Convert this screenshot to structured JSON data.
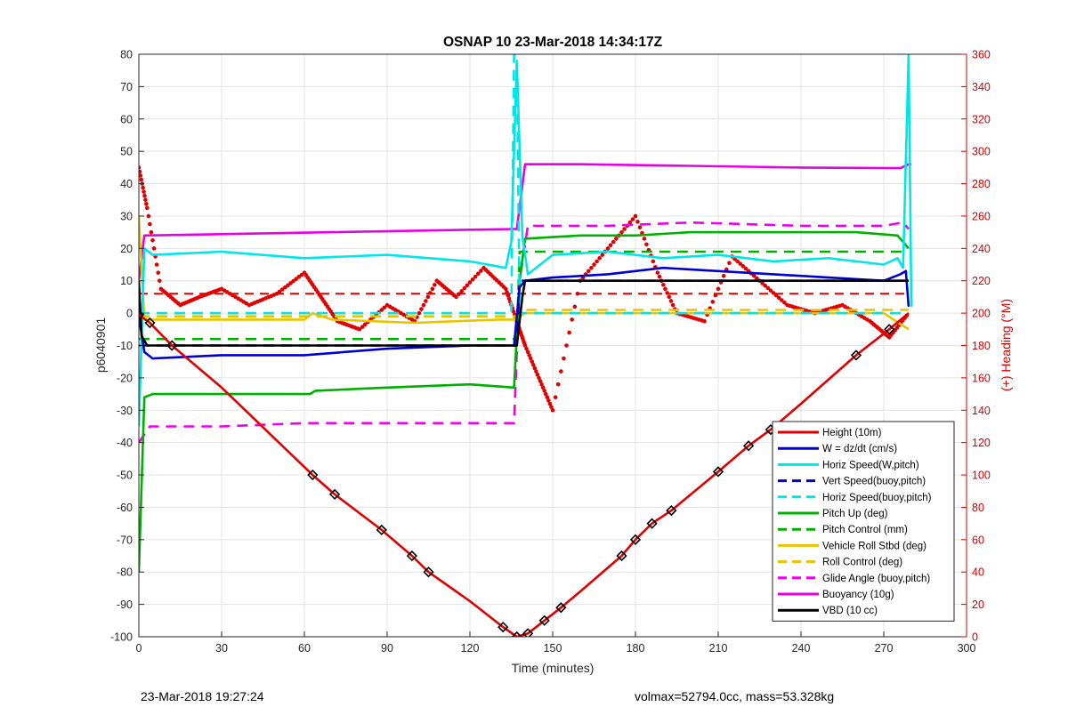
{
  "footer": {
    "left": "23-Mar-2018 19:27:24",
    "right": "volmax=52794.0cc, mass=53.328kg"
  },
  "chart_data": {
    "type": "line",
    "title": "OSNAP 10 23-Mar-2018 14:34:17Z",
    "xlabel": "Time (minutes)",
    "ylabel": "p6040901",
    "y2label": "(+) Heading (°M)",
    "xlim": [
      0,
      300
    ],
    "ylim": [
      -100,
      80
    ],
    "y2lim": [
      0,
      360
    ],
    "xticks": [
      0,
      30,
      60,
      90,
      120,
      150,
      180,
      210,
      240,
      270,
      300
    ],
    "yticks": [
      -100,
      -90,
      -80,
      -70,
      -60,
      -50,
      -40,
      -30,
      -20,
      -10,
      0,
      10,
      20,
      30,
      40,
      50,
      60,
      70,
      80
    ],
    "y2ticks": [
      0,
      20,
      40,
      60,
      80,
      100,
      120,
      140,
      160,
      180,
      200,
      220,
      240,
      260,
      280,
      300,
      320,
      340,
      360
    ],
    "grid": true,
    "legend_position": "bottom-right",
    "series": [
      {
        "name": "Height (10m)",
        "color": "#e00000",
        "style": "solid",
        "x": [
          0,
          4,
          12,
          30,
          63,
          71,
          88,
          99,
          105,
          120,
          132,
          137,
          141,
          147,
          153,
          160,
          175,
          180,
          186,
          193,
          210,
          221,
          229,
          240,
          260,
          272,
          279
        ],
        "y": [
          -0.5,
          -3,
          -10,
          -23,
          -50,
          -56,
          -67,
          -75,
          -80,
          -89,
          -97,
          -100,
          -99,
          -95,
          -91,
          -86,
          -75,
          -70,
          -65,
          -61,
          -49,
          -41,
          -36,
          -28,
          -13,
          -5,
          0
        ]
      },
      {
        "name": "W = dz/dt (cm/s)",
        "color": "#0000cc",
        "style": "solid",
        "x": [
          0,
          2,
          5,
          30,
          60,
          90,
          120,
          136,
          138,
          140,
          150,
          170,
          190,
          210,
          230,
          250,
          270,
          276,
          278,
          279
        ],
        "y": [
          -1,
          -12,
          -14,
          -13,
          -13,
          -11,
          -10,
          -10,
          8,
          10,
          11,
          12,
          14,
          13,
          12,
          11,
          10,
          12,
          13,
          2
        ]
      },
      {
        "name": "Horiz Speed(W,pitch)",
        "color": "#00e5e5",
        "style": "solid",
        "x": [
          0,
          2,
          5,
          30,
          60,
          90,
          120,
          133,
          135,
          137,
          139,
          141,
          150,
          170,
          190,
          210,
          230,
          250,
          270,
          275,
          277,
          279,
          280
        ],
        "y": [
          -35,
          20,
          18,
          19,
          17,
          18,
          16,
          14,
          22,
          78,
          24,
          12,
          18,
          19,
          17,
          18,
          16,
          17,
          15,
          17,
          14,
          80,
          2
        ]
      },
      {
        "name": "Vert Speed(buoy,pitch)",
        "color": "#0000cc",
        "style": "dashed",
        "x": [
          0,
          137,
          138,
          279
        ],
        "y": [
          -10,
          -10,
          10,
          10
        ]
      },
      {
        "name": "Horiz Speed(buoy,pitch)",
        "color": "#00e5e5",
        "style": "dashed",
        "x": [
          0,
          4,
          135,
          136,
          137,
          138,
          279
        ],
        "y": [
          0,
          0,
          0,
          80,
          80,
          0,
          0
        ]
      },
      {
        "name": "Pitch Up (deg)",
        "color": "#00b000",
        "style": "solid",
        "x": [
          0,
          2,
          5,
          30,
          62,
          64,
          90,
          120,
          136,
          138,
          140,
          160,
          180,
          200,
          230,
          260,
          275,
          279
        ],
        "y": [
          -80,
          -26,
          -25,
          -25,
          -25,
          -24,
          -23,
          -22,
          -23,
          10,
          23,
          24,
          24,
          25,
          25,
          25,
          24,
          20
        ]
      },
      {
        "name": "Pitch Control (mm)",
        "color": "#00b000",
        "style": "dashed",
        "x": [
          0,
          137,
          138,
          279
        ],
        "y": [
          -8,
          -8,
          19,
          19
        ]
      },
      {
        "name": "Vehicle Roll Stbd (deg)",
        "color": "#e8c400",
        "style": "solid",
        "x": [
          0,
          2,
          10,
          60,
          63,
          70,
          100,
          130,
          136,
          140,
          160,
          200,
          240,
          270,
          279
        ],
        "y": [
          30,
          -2,
          -2,
          -2,
          0,
          -2,
          -3,
          -2,
          -2,
          0,
          0,
          0,
          0,
          0,
          -5
        ]
      },
      {
        "name": "Roll Control (deg)",
        "color": "#e8c400",
        "style": "dashed",
        "x": [
          0,
          137,
          138,
          279
        ],
        "y": [
          -1,
          -1,
          1,
          1
        ]
      },
      {
        "name": "Glide Angle (buoy,pitch)",
        "color": "#ee00ee",
        "style": "dashed",
        "x": [
          0,
          4,
          30,
          60,
          90,
          120,
          136,
          138,
          141,
          170,
          200,
          240,
          270,
          277,
          279
        ],
        "y": [
          -40,
          -35,
          -35,
          -34,
          -34,
          -34,
          -34,
          10,
          27,
          27,
          28,
          27,
          27,
          28,
          26
        ]
      },
      {
        "name": "Buoyancy (10g)",
        "color": "#e600e6",
        "style": "solid",
        "x": [
          0,
          2,
          136,
          137,
          140,
          160,
          200,
          240,
          276,
          279,
          280
        ],
        "y": [
          10,
          24,
          26,
          26,
          46,
          46,
          45.5,
          45,
          44.8,
          46,
          46
        ]
      },
      {
        "name": "VBD (10 cc)",
        "color": "#000000",
        "style": "solid",
        "x": [
          0,
          1,
          3,
          137,
          139,
          140,
          279
        ],
        "y": [
          10,
          -7,
          -10,
          -10,
          5,
          10,
          10
        ]
      }
    ],
    "heading_data": {
      "axis": "right",
      "color": "#e00000",
      "x": [
        0,
        3,
        8,
        15,
        22,
        30,
        40,
        50,
        60,
        66,
        72,
        80,
        90,
        100,
        108,
        115,
        125,
        133,
        137,
        140,
        145,
        150,
        160,
        170,
        180,
        188,
        195,
        205,
        215,
        225,
        235,
        245,
        255,
        265,
        272,
        279
      ],
      "y": [
        290,
        265,
        215,
        205,
        210,
        215,
        205,
        212,
        225,
        210,
        195,
        190,
        205,
        195,
        220,
        210,
        228,
        215,
        195,
        180,
        160,
        140,
        220,
        240,
        260,
        225,
        200,
        195,
        235,
        220,
        205,
        200,
        205,
        195,
        185,
        200
      ],
      "dashed_reference": 212
    },
    "markers": {
      "series": "Height (10m)",
      "symbol": "diamond",
      "x": [
        0,
        4,
        12,
        63,
        71,
        88,
        99,
        105,
        132,
        137,
        141,
        147,
        153,
        175,
        180,
        186,
        193,
        210,
        221,
        229,
        260,
        272
      ]
    }
  }
}
